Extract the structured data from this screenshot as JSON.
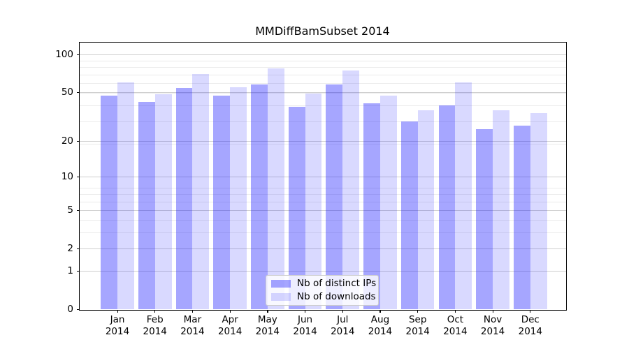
{
  "title": "MMDiffBamSubset 2014",
  "chart_data": {
    "type": "bar",
    "title": "MMDiffBamSubset 2014",
    "x_year": "2014",
    "categories": [
      "Jan",
      "Feb",
      "Mar",
      "Apr",
      "May",
      "Jun",
      "Jul",
      "Aug",
      "Sep",
      "Oct",
      "Nov",
      "Dec"
    ],
    "series": [
      {
        "name": "Nb of distinct IPs",
        "fill": "rgba(0,0,255,0.35)",
        "hex_on_white": "#a6a6ff",
        "values": [
          47,
          42,
          54,
          47,
          58,
          38,
          58,
          41,
          29,
          39,
          25,
          27
        ]
      },
      {
        "name": "Nb of downloads",
        "fill": "rgba(0,0,255,0.15)",
        "hex_on_white": "#d9d9ff",
        "values": [
          60,
          48,
          70,
          55,
          78,
          49,
          75,
          47,
          36,
          60,
          36,
          34
        ]
      }
    ],
    "y_ticks": [
      0,
      1,
      2,
      5,
      10,
      20,
      50,
      100
    ],
    "y_scale": "log10(value+1)",
    "ylim": [
      0,
      126
    ],
    "grid": {
      "axis": "y",
      "which": "major+minor",
      "major_color": "#cfcfcf",
      "minor_color": "#ebebeb"
    },
    "legend_position": "lower center",
    "background_color": "#ffffff",
    "spine_color": "#000000"
  }
}
